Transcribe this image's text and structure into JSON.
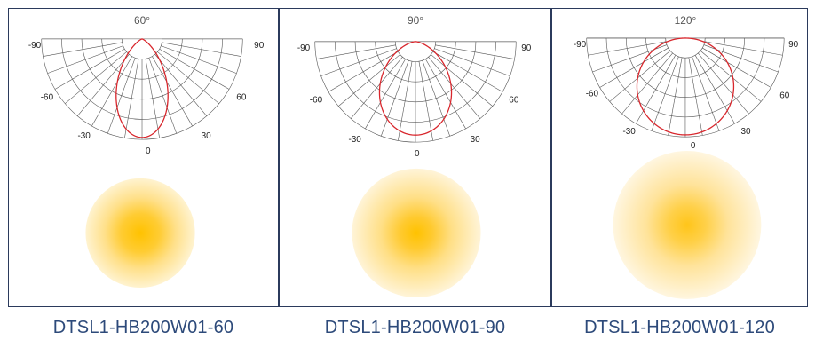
{
  "colors": {
    "panel_border": "#2b3a5c",
    "grid": "#555555",
    "curve": "#d8262c",
    "caption": "#2d4a7a",
    "glow_core": "#ffc200",
    "glow_edge": "#fff3d0"
  },
  "panels": [
    {
      "beam_angle_label": "60°",
      "beam_angle": 60,
      "angle_labels": {
        "left90": "-90",
        "right90": "90",
        "left60": "-60",
        "right60": "60",
        "left30": "-30",
        "right30": "30",
        "zero": "0"
      },
      "caption": "DTSL1-HB200W01-60"
    },
    {
      "beam_angle_label": "90°",
      "beam_angle": 90,
      "angle_labels": {
        "left90": "-90",
        "right90": "90",
        "left60": "-60",
        "right60": "60",
        "left30": "-30",
        "right30": "30",
        "zero": "0"
      },
      "caption": "DTSL1-HB200W01-90"
    },
    {
      "beam_angle_label": "120°",
      "beam_angle": 120,
      "angle_labels": {
        "left90": "-90",
        "right90": "90",
        "left60": "-60",
        "right60": "60",
        "left30": "-30",
        "right30": "30",
        "zero": "0"
      },
      "caption": "DTSL1-HB200W01-120"
    }
  ]
}
